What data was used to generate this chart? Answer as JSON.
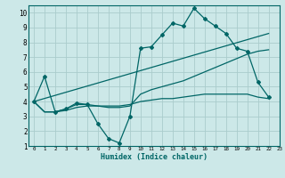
{
  "title": "",
  "xlabel": "Humidex (Indice chaleur)",
  "ylabel": "",
  "bg_color": "#cce8e8",
  "grid_color": "#aacccc",
  "line_color": "#006666",
  "xlim": [
    -0.5,
    23
  ],
  "ylim": [
    1,
    10.5
  ],
  "xticks": [
    0,
    1,
    2,
    3,
    4,
    5,
    6,
    7,
    8,
    9,
    10,
    11,
    12,
    13,
    14,
    15,
    16,
    17,
    18,
    19,
    20,
    21,
    22,
    23
  ],
  "yticks": [
    1,
    2,
    3,
    4,
    5,
    6,
    7,
    8,
    9,
    10
  ],
  "series": [
    {
      "x": [
        0,
        1,
        2,
        3,
        4,
        5,
        6,
        7,
        8,
        9,
        10,
        11,
        12,
        13,
        14,
        15,
        16,
        17,
        18,
        19,
        20,
        21,
        22
      ],
      "y": [
        4.0,
        5.7,
        3.3,
        3.5,
        3.9,
        3.8,
        2.5,
        1.5,
        1.2,
        3.0,
        7.6,
        7.7,
        8.5,
        9.3,
        9.1,
        10.3,
        9.6,
        9.1,
        8.6,
        7.6,
        7.4,
        5.3,
        4.3
      ],
      "marker": true
    },
    {
      "x": [
        0,
        1,
        2,
        3,
        4,
        5,
        6,
        7,
        8,
        9,
        10,
        11,
        12,
        13,
        14,
        15,
        16,
        17,
        18,
        19,
        20,
        21,
        22
      ],
      "y": [
        4.0,
        3.3,
        3.3,
        3.5,
        3.8,
        3.8,
        3.7,
        3.6,
        3.6,
        3.7,
        4.5,
        4.8,
        5.0,
        5.2,
        5.4,
        5.7,
        6.0,
        6.3,
        6.6,
        6.9,
        7.2,
        7.4,
        7.5
      ],
      "marker": false
    },
    {
      "x": [
        0,
        1,
        2,
        3,
        4,
        5,
        6,
        7,
        8,
        9,
        10,
        11,
        12,
        13,
        14,
        15,
        16,
        17,
        18,
        19,
        20,
        21,
        22
      ],
      "y": [
        4.0,
        3.3,
        3.3,
        3.4,
        3.6,
        3.7,
        3.7,
        3.7,
        3.7,
        3.8,
        4.0,
        4.1,
        4.2,
        4.2,
        4.3,
        4.4,
        4.5,
        4.5,
        4.5,
        4.5,
        4.5,
        4.3,
        4.2
      ],
      "marker": false
    },
    {
      "x": [
        0,
        22
      ],
      "y": [
        4.0,
        8.6
      ],
      "marker": false
    }
  ]
}
